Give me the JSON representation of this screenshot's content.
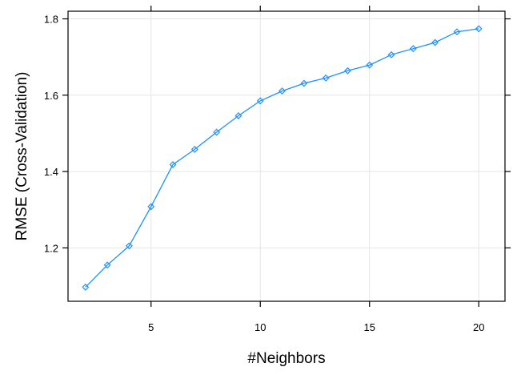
{
  "chart_data": {
    "type": "line",
    "title": "",
    "xlabel": "#Neighbors",
    "ylabel": "RMSE (Cross-Validation)",
    "xlim": [
      1.2,
      21.2
    ],
    "ylim": [
      1.06,
      1.82
    ],
    "xticks": [
      5,
      10,
      15,
      20
    ],
    "xtick_labels": [
      "5",
      "10",
      "15",
      "20"
    ],
    "yticks": [
      1.2,
      1.4,
      1.6,
      1.8
    ],
    "ytick_labels": [
      "1.2",
      "1.4",
      "1.6",
      "1.8"
    ],
    "grid": true,
    "legend": "none",
    "series": [
      {
        "color": "#1e90ff",
        "marker": "diamond",
        "x": [
          2,
          3,
          4,
          5,
          6,
          7,
          8,
          9,
          10,
          11,
          12,
          13,
          14,
          15,
          16,
          17,
          18,
          19,
          20
        ],
        "y": [
          1.097,
          1.155,
          1.205,
          1.308,
          1.418,
          1.458,
          1.503,
          1.546,
          1.585,
          1.611,
          1.631,
          1.645,
          1.664,
          1.679,
          1.706,
          1.722,
          1.738,
          1.766,
          1.774
        ]
      }
    ]
  }
}
